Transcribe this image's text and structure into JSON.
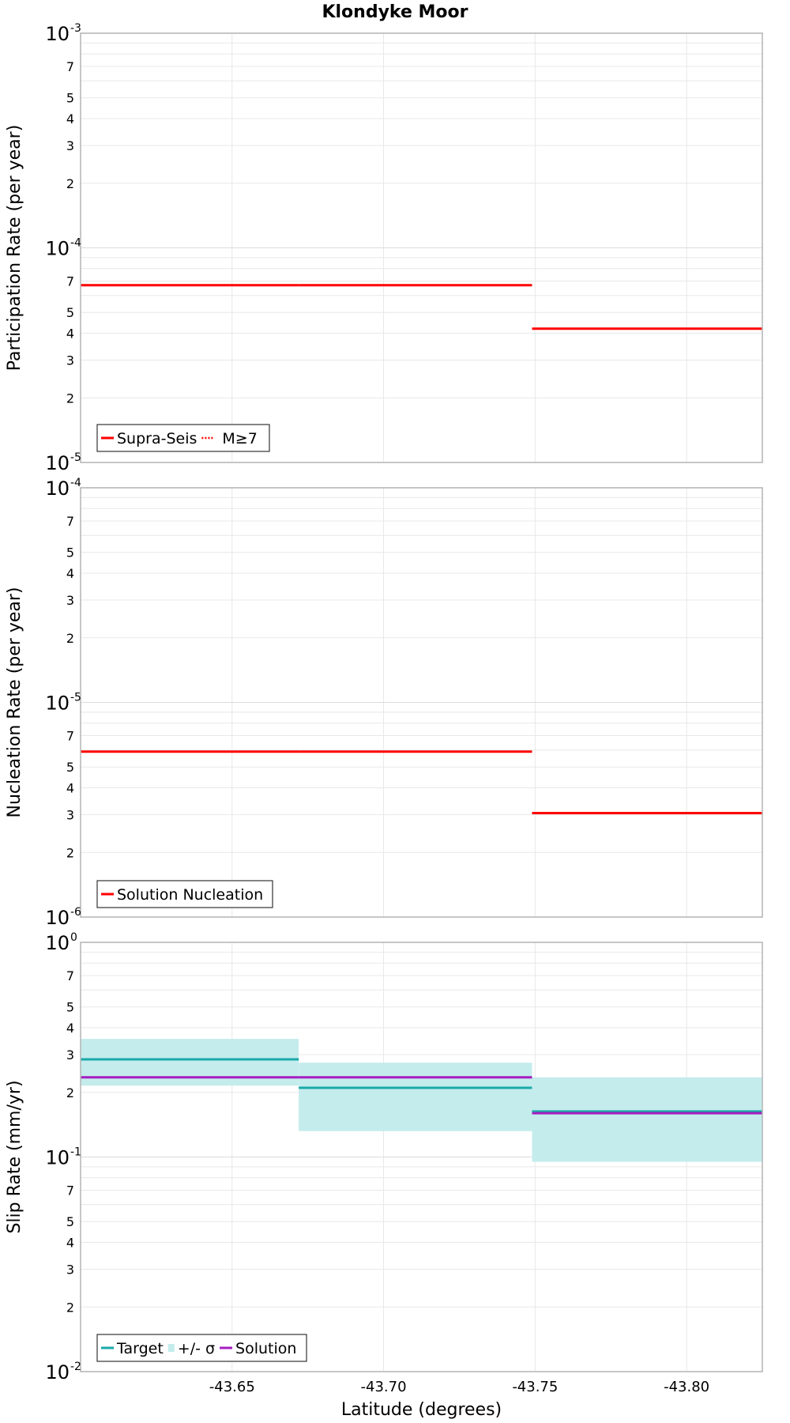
{
  "chart_data": [
    {
      "type": "line",
      "title": "Klondyke Moor",
      "ylabel": "Participation Rate (per year)",
      "yscale": "log",
      "ylim": [
        1e-05,
        0.001
      ],
      "xlim": [
        -43.6,
        -43.825
      ],
      "grid": true,
      "legend_position": "bottom-left",
      "series": [
        {
          "name": "Supra-Seis",
          "color": "#ff0000",
          "style": "solid",
          "segments": [
            {
              "x": [
                -43.6,
                -43.672
              ],
              "y": 6.7e-05
            },
            {
              "x": [
                -43.672,
                -43.749
              ],
              "y": 6.7e-05
            },
            {
              "x": [
                -43.749,
                -43.825
              ],
              "y": 4.2e-05
            }
          ]
        },
        {
          "name": "M≥7",
          "color": "#ff0000",
          "style": "dotted",
          "segments": [
            {
              "x": [
                -43.749,
                -43.825
              ],
              "y": 4.2e-05
            }
          ]
        }
      ]
    },
    {
      "type": "line",
      "ylabel": "Nucleation Rate (per year)",
      "yscale": "log",
      "ylim": [
        1e-06,
        0.0001
      ],
      "xlim": [
        -43.6,
        -43.825
      ],
      "grid": true,
      "legend_position": "bottom-left",
      "series": [
        {
          "name": "Solution Nucleation",
          "color": "#ff0000",
          "style": "solid",
          "segments": [
            {
              "x": [
                -43.6,
                -43.672
              ],
              "y": 5.9e-06
            },
            {
              "x": [
                -43.672,
                -43.749
              ],
              "y": 5.9e-06
            },
            {
              "x": [
                -43.749,
                -43.825
              ],
              "y": 3.05e-06
            }
          ]
        }
      ]
    },
    {
      "type": "area",
      "ylabel": "Slip Rate (mm/yr)",
      "xlabel": "Latitude (degrees)",
      "yscale": "log",
      "ylim": [
        0.01,
        1
      ],
      "xlim": [
        -43.6,
        -43.825
      ],
      "xticks": [
        -43.65,
        -43.7,
        -43.75,
        -43.8
      ],
      "xtick_labels": [
        "-43.65",
        "-43.70",
        "-43.75",
        "-43.80"
      ],
      "grid": true,
      "legend_position": "bottom-left",
      "band": {
        "name": "+/- σ",
        "color": "#c4ecec",
        "segments": [
          {
            "x": [
              -43.6,
              -43.672
            ],
            "low": 0.215,
            "high": 0.355
          },
          {
            "x": [
              -43.672,
              -43.749
            ],
            "low": 0.132,
            "high": 0.275
          },
          {
            "x": [
              -43.749,
              -43.825
            ],
            "low": 0.095,
            "high": 0.235
          }
        ]
      },
      "series": [
        {
          "name": "Target",
          "color": "#1aa9a9",
          "segments": [
            {
              "x": [
                -43.6,
                -43.672
              ],
              "y": 0.285
            },
            {
              "x": [
                -43.672,
                -43.749
              ],
              "y": 0.21
            },
            {
              "x": [
                -43.749,
                -43.825
              ],
              "y": 0.163
            }
          ]
        },
        {
          "name": "Solution",
          "color": "#a51fc0",
          "segments": [
            {
              "x": [
                -43.6,
                -43.672
              ],
              "y": 0.235
            },
            {
              "x": [
                -43.672,
                -43.749
              ],
              "y": 0.235
            },
            {
              "x": [
                -43.749,
                -43.825
              ],
              "y": 0.16
            }
          ]
        }
      ]
    }
  ]
}
